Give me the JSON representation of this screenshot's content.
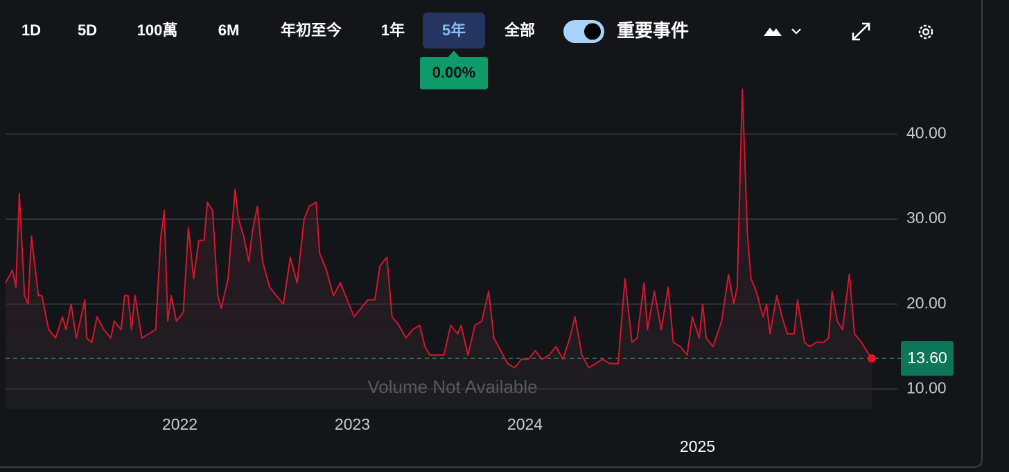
{
  "toolbar": {
    "ranges": [
      "1D",
      "5D",
      "100萬",
      "6M",
      "年初至今",
      "1年",
      "5年",
      "全部"
    ],
    "selected_range": "5年",
    "change_tooltip": "0.00%",
    "events_toggle": "重要事件"
  },
  "chart_data": {
    "type": "line",
    "color": "#d4162e",
    "grid": true,
    "x": [
      2020.99,
      2021.03,
      2021.05,
      2021.07,
      2021.1,
      2021.12,
      2021.14,
      2021.18,
      2021.2,
      2021.24,
      2021.28,
      2021.32,
      2021.34,
      2021.37,
      2021.4,
      2021.45,
      2021.46,
      2021.49,
      2021.52,
      2021.56,
      2021.6,
      2021.62,
      2021.66,
      2021.68,
      2021.7,
      2021.72,
      2021.74,
      2021.78,
      2021.82,
      2021.86,
      2021.89,
      2021.91,
      2021.93,
      2021.95,
      2021.98,
      2022.02,
      2022.05,
      2022.08,
      2022.11,
      2022.14,
      2022.16,
      2022.19,
      2022.22,
      2022.24,
      2022.28,
      2022.32,
      2022.34,
      2022.37,
      2022.4,
      2022.42,
      2022.45,
      2022.48,
      2022.52,
      2022.56,
      2022.6,
      2022.64,
      2022.68,
      2022.72,
      2022.75,
      2022.79,
      2022.81,
      2022.85,
      2022.89,
      2022.93,
      2022.97,
      2023.01,
      2023.05,
      2023.09,
      2023.13,
      2023.16,
      2023.2,
      2023.23,
      2023.27,
      2023.31,
      2023.35,
      2023.39,
      2023.42,
      2023.45,
      2023.49,
      2023.53,
      2023.57,
      2023.61,
      2023.63,
      2023.67,
      2023.71,
      2023.75,
      2023.79,
      2023.82,
      2023.86,
      2023.9,
      2023.94,
      2023.98,
      2024.02,
      2024.06,
      2024.1,
      2024.14,
      2024.18,
      2024.22,
      2024.26,
      2024.29,
      2024.33,
      2024.37,
      2024.41,
      2024.45,
      2024.49,
      2024.54,
      2024.58,
      2024.62,
      2024.65,
      2024.69,
      2024.71,
      2024.75,
      2024.79,
      2024.83,
      2024.86,
      2024.9,
      2024.94,
      2024.97,
      2025.01,
      2025.03,
      2025.05,
      2025.09,
      2025.14,
      2025.18,
      2025.21,
      2025.23,
      2025.26,
      2025.29,
      2025.31,
      2025.34,
      2025.38,
      2025.4,
      2025.42,
      2025.46,
      2025.49,
      2025.52,
      2025.56,
      2025.58,
      2025.62,
      2025.65,
      2025.69,
      2025.73,
      2025.76,
      2025.78,
      2025.81,
      2025.84,
      2025.88,
      2025.91,
      2025.95,
      2025.98,
      2026.01
    ],
    "values": [
      22.5,
      24,
      22,
      33,
      21,
      20,
      28,
      21,
      21,
      17,
      16,
      18.5,
      17,
      20,
      16,
      20.5,
      16,
      15.5,
      18.5,
      17,
      16,
      18,
      17,
      21,
      21,
      17,
      21,
      16,
      16.5,
      17,
      28,
      31,
      18,
      21,
      18,
      19,
      29,
      23,
      27.5,
      27.5,
      32,
      31,
      21,
      19.5,
      23,
      33.5,
      30,
      28,
      25,
      28.5,
      31.5,
      25,
      22,
      21,
      20,
      25.5,
      22.5,
      30,
      31.5,
      32,
      26,
      24,
      21,
      22.5,
      20.5,
      18.5,
      19.5,
      20.5,
      20.5,
      24.5,
      25.5,
      18.5,
      17.5,
      16,
      17,
      17.5,
      15,
      14,
      14,
      14,
      17.5,
      16.5,
      17.5,
      14,
      17.5,
      18,
      21.5,
      16,
      14.5,
      13,
      12.5,
      13.5,
      13.5,
      14.5,
      13.5,
      14,
      15,
      13.5,
      16,
      18.5,
      14,
      12.5,
      13,
      13.5,
      13,
      13,
      23,
      15.5,
      16,
      22.5,
      17,
      21.5,
      17,
      22,
      15.5,
      15,
      14,
      18.5,
      16,
      20,
      16,
      15,
      18,
      23.5,
      20,
      22,
      45.3,
      28,
      23,
      21.5,
      18.5,
      20,
      16.5,
      21,
      18.5,
      16.5,
      16.5,
      20.5,
      15.5,
      15,
      15.5,
      15.5,
      16,
      21.5,
      18,
      17,
      23.5,
      16.5,
      15.5,
      14.5,
      13.6
    ],
    "xlim": [
      2020.99,
      2026.01
    ],
    "xticks": [
      2022,
      2023,
      2024,
      2025
    ],
    "ylim": [
      8.8,
      46
    ],
    "yticks": [
      {
        "value": 10,
        "label": "10.00"
      },
      {
        "value": 20,
        "label": "20.00"
      },
      {
        "value": 30,
        "label": "30.00"
      },
      {
        "value": 40,
        "label": "40.00"
      }
    ],
    "last_price": {
      "value": 13.6,
      "label": "13.60"
    },
    "annotation": "Volume Not Available"
  }
}
